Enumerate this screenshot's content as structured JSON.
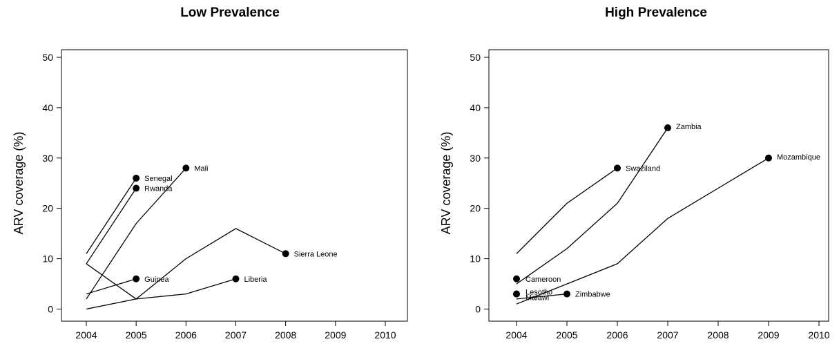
{
  "chart_data": [
    {
      "type": "line",
      "title": "Low Prevalence",
      "xlabel": "",
      "ylabel": "ARV coverage (%)",
      "xlim": [
        2004,
        2010
      ],
      "ylim": [
        0,
        50
      ],
      "xticks": [
        2004,
        2005,
        2006,
        2007,
        2008,
        2009,
        2010
      ],
      "yticks": [
        0,
        10,
        20,
        30,
        40,
        50
      ],
      "grid": false,
      "series": [
        {
          "name": "Senegal",
          "x": [
            2004,
            2005
          ],
          "y": [
            11,
            26
          ]
        },
        {
          "name": "Rwanda",
          "x": [
            2004,
            2005
          ],
          "y": [
            9,
            24
          ]
        },
        {
          "name": "Mali",
          "x": [
            2004,
            2005,
            2006
          ],
          "y": [
            2,
            17,
            28
          ]
        },
        {
          "name": "Guinea",
          "x": [
            2004,
            2005
          ],
          "y": [
            3,
            6
          ]
        },
        {
          "name": "Sierra Leone",
          "x": [
            2004,
            2005,
            2006,
            2007,
            2008
          ],
          "y": [
            9,
            2,
            10,
            16,
            11
          ]
        },
        {
          "name": "Liberia",
          "x": [
            2004,
            2005,
            2006,
            2007
          ],
          "y": [
            0,
            2,
            3,
            6
          ]
        }
      ]
    },
    {
      "type": "line",
      "title": "High Prevalence",
      "xlabel": "",
      "ylabel": "ARV coverage (%)",
      "xlim": [
        2004,
        2010
      ],
      "ylim": [
        0,
        50
      ],
      "xticks": [
        2004,
        2005,
        2006,
        2007,
        2008,
        2009,
        2010
      ],
      "yticks": [
        0,
        10,
        20,
        30,
        40,
        50
      ],
      "grid": false,
      "series": [
        {
          "name": "Zambia",
          "x": [
            2004,
            2005,
            2006,
            2007
          ],
          "y": [
            5,
            12,
            21,
            36
          ]
        },
        {
          "name": "Swaziland",
          "x": [
            2004,
            2005,
            2006
          ],
          "y": [
            11,
            21,
            28
          ]
        },
        {
          "name": "Mozambique",
          "x": [
            2004,
            2005,
            2006,
            2007,
            2008,
            2009
          ],
          "y": [
            1,
            5,
            9,
            18,
            24,
            30
          ]
        },
        {
          "name": "Cameroon",
          "x": [
            2004
          ],
          "y": [
            6
          ]
        },
        {
          "name": "Lesotho",
          "x": [
            2004
          ],
          "y": [
            3
          ]
        },
        {
          "name": "Malawi",
          "x": [
            2004
          ],
          "y": [
            3
          ]
        },
        {
          "name": "Zimbabwe",
          "x": [
            2004,
            2005
          ],
          "y": [
            2,
            3
          ]
        }
      ]
    }
  ]
}
